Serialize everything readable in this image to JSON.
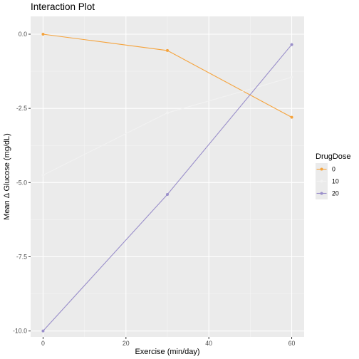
{
  "chart_data": {
    "type": "line",
    "title": "Interaction Plot",
    "xlabel": "Exercise (min/day)",
    "ylabel": "Mean Δ Glucose (mg/dL)",
    "x": [
      0,
      30,
      60
    ],
    "xlim": [
      -3,
      63
    ],
    "ylim": [
      -10.2,
      0.6
    ],
    "xticks": [
      0,
      20,
      40,
      60
    ],
    "yticks": [
      0.0,
      -2.5,
      -5.0,
      -7.5,
      -10.0
    ],
    "xtick_labels": [
      "0",
      "20",
      "40",
      "60"
    ],
    "ytick_labels": [
      "0.0",
      "-2.5",
      "-5.0",
      "-7.5",
      "-10.0"
    ],
    "grid": true,
    "legend_title": "DrugDose",
    "legend_position": "right",
    "series": [
      {
        "name": "0",
        "values": [
          0.0,
          -0.55,
          -2.8
        ],
        "color": "#f5a33c"
      },
      {
        "name": "10",
        "values": [
          -4.75,
          -2.65,
          -1.45
        ],
        "color": "#f2f2f2"
      },
      {
        "name": "20",
        "values": [
          -10.0,
          -5.4,
          -0.35
        ],
        "color": "#9a8fca"
      }
    ]
  }
}
